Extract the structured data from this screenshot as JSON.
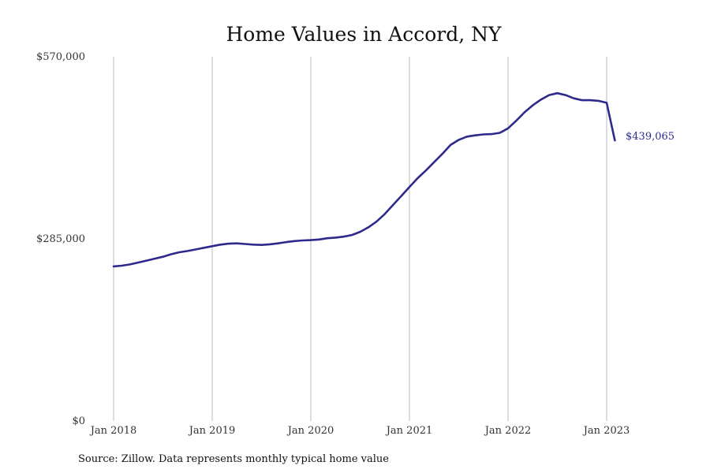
{
  "chart_data": {
    "type": "line",
    "title": "Home Values in Accord, NY",
    "xlabel": "",
    "ylabel": "",
    "x_ticks": [
      "Jan 2018",
      "Jan 2019",
      "Jan 2020",
      "Jan 2021",
      "Jan 2022",
      "Jan 2023"
    ],
    "y_ticks": [
      "$0",
      "$285,000",
      "$570,000"
    ],
    "y_tick_values": [
      0,
      285000,
      570000
    ],
    "ylim": [
      0,
      570000
    ],
    "grid": "vertical lines at each January",
    "end_label": "$439,065",
    "source": "Source: Zillow. Data represents monthly typical home value",
    "line_color": "#2E2A8C",
    "series": [
      {
        "x": [
          "2018-01",
          "2018-02",
          "2018-03",
          "2018-04",
          "2018-05",
          "2018-06",
          "2018-07",
          "2018-08",
          "2018-09",
          "2018-10",
          "2018-11",
          "2018-12",
          "2019-01",
          "2019-02",
          "2019-03",
          "2019-04",
          "2019-05",
          "2019-06",
          "2019-07",
          "2019-08",
          "2019-09",
          "2019-10",
          "2019-11",
          "2019-12",
          "2020-01",
          "2020-02",
          "2020-03",
          "2020-04",
          "2020-05",
          "2020-06",
          "2020-07",
          "2020-08",
          "2020-09",
          "2020-10",
          "2020-11",
          "2020-12",
          "2021-01",
          "2021-02",
          "2021-03",
          "2021-04",
          "2021-05",
          "2021-06",
          "2021-07",
          "2021-08",
          "2021-09",
          "2021-10",
          "2021-11",
          "2021-12",
          "2022-01",
          "2022-02",
          "2022-03",
          "2022-04",
          "2022-05",
          "2022-06",
          "2022-07",
          "2022-08",
          "2022-09",
          "2022-10",
          "2022-11",
          "2022-12",
          "2023-01",
          "2023-02"
        ],
        "values": [
          242000,
          243000,
          245000,
          248000,
          251000,
          254000,
          257000,
          261000,
          264000,
          266000,
          268500,
          271000,
          273500,
          276000,
          277500,
          278000,
          277000,
          276000,
          275500,
          276500,
          278000,
          280000,
          281500,
          282500,
          283000,
          284000,
          286000,
          287000,
          288500,
          291000,
          296000,
          303000,
          312000,
          324000,
          338000,
          352000,
          366000,
          380000,
          392000,
          405000,
          418000,
          432000,
          440000,
          445000,
          447000,
          448500,
          449000,
          451000,
          458000,
          470000,
          483000,
          494000,
          503000,
          510000,
          513000,
          510000,
          505000,
          502000,
          502000,
          501000,
          498000,
          439065
        ]
      }
    ]
  }
}
